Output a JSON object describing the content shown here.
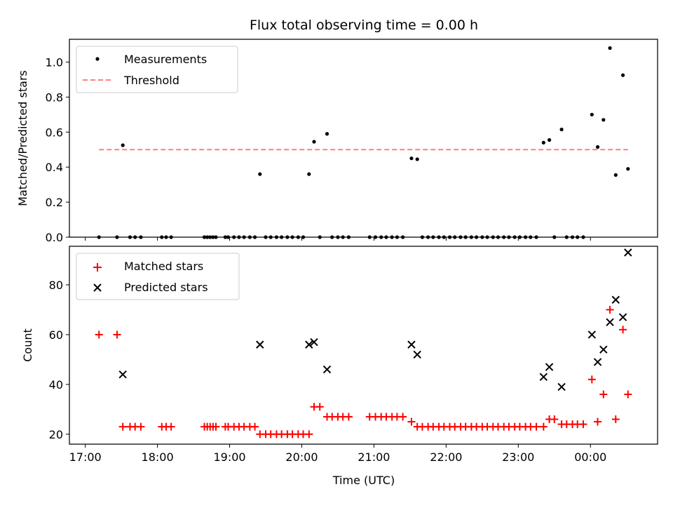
{
  "figure": {
    "title": "Flux total observing time = 0.00 h",
    "xlabel": "Time (UTC)",
    "x_tick_labels": [
      "17:00",
      "18:00",
      "19:00",
      "20:00",
      "21:00",
      "22:00",
      "23:00",
      "00:00"
    ]
  },
  "chart_data": [
    {
      "type": "scatter",
      "panel": "top",
      "xlabel": "",
      "ylabel": "Matched/Predicted stars",
      "x_unit": "hours after 17:00 UTC",
      "xlim": [
        -0.22,
        7.93
      ],
      "ylim": [
        0.0,
        1.13
      ],
      "y_ticks": [
        0.0,
        0.2,
        0.4,
        0.6,
        0.8,
        1.0
      ],
      "y_tick_labels": [
        "0.0",
        "0.2",
        "0.4",
        "0.6",
        "0.8",
        "1.0"
      ],
      "legend_position": "top-left",
      "colors": {
        "measurements": "#000000",
        "threshold": "#ff7f7f"
      },
      "series": [
        {
          "name": "Measurements",
          "marker": "dot",
          "points": [
            [
              0.19,
              0.0
            ],
            [
              0.44,
              0.0
            ],
            [
              0.52,
              0.525
            ],
            [
              0.62,
              0.0
            ],
            [
              0.69,
              0.0
            ],
            [
              0.77,
              0.0
            ],
            [
              1.06,
              0.0
            ],
            [
              1.12,
              0.0
            ],
            [
              1.19,
              0.0
            ],
            [
              1.65,
              0.0
            ],
            [
              1.69,
              0.0
            ],
            [
              1.73,
              0.0
            ],
            [
              1.77,
              0.0
            ],
            [
              1.81,
              0.0
            ],
            [
              1.94,
              0.0
            ],
            [
              1.98,
              0.0
            ],
            [
              2.06,
              0.0
            ],
            [
              2.13,
              0.0
            ],
            [
              2.2,
              0.0
            ],
            [
              2.28,
              0.0
            ],
            [
              2.35,
              0.0
            ],
            [
              2.42,
              0.36
            ],
            [
              2.5,
              0.0
            ],
            [
              2.57,
              0.0
            ],
            [
              2.65,
              0.0
            ],
            [
              2.72,
              0.0
            ],
            [
              2.8,
              0.0
            ],
            [
              2.87,
              0.0
            ],
            [
              2.95,
              0.0
            ],
            [
              3.02,
              0.0
            ],
            [
              3.1,
              0.36
            ],
            [
              3.17,
              0.545
            ],
            [
              3.25,
              0.0
            ],
            [
              3.35,
              0.59
            ],
            [
              3.42,
              0.0
            ],
            [
              3.5,
              0.0
            ],
            [
              3.57,
              0.0
            ],
            [
              3.65,
              0.0
            ],
            [
              3.94,
              0.0
            ],
            [
              4.02,
              0.0
            ],
            [
              4.1,
              0.0
            ],
            [
              4.17,
              0.0
            ],
            [
              4.25,
              0.0
            ],
            [
              4.32,
              0.0
            ],
            [
              4.4,
              0.0
            ],
            [
              4.52,
              0.45
            ],
            [
              4.6,
              0.445
            ],
            [
              4.67,
              0.0
            ],
            [
              4.75,
              0.0
            ],
            [
              4.82,
              0.0
            ],
            [
              4.9,
              0.0
            ],
            [
              4.97,
              0.0
            ],
            [
              5.05,
              0.0
            ],
            [
              5.12,
              0.0
            ],
            [
              5.2,
              0.0
            ],
            [
              5.27,
              0.0
            ],
            [
              5.35,
              0.0
            ],
            [
              5.42,
              0.0
            ],
            [
              5.5,
              0.0
            ],
            [
              5.57,
              0.0
            ],
            [
              5.65,
              0.0
            ],
            [
              5.72,
              0.0
            ],
            [
              5.8,
              0.0
            ],
            [
              5.87,
              0.0
            ],
            [
              5.95,
              0.0
            ],
            [
              6.02,
              0.0
            ],
            [
              6.1,
              0.0
            ],
            [
              6.17,
              0.0
            ],
            [
              6.25,
              0.0
            ],
            [
              6.35,
              0.54
            ],
            [
              6.43,
              0.555
            ],
            [
              6.5,
              0.0
            ],
            [
              6.6,
              0.615
            ],
            [
              6.67,
              0.0
            ],
            [
              6.75,
              0.0
            ],
            [
              6.82,
              0.0
            ],
            [
              6.9,
              0.0
            ],
            [
              7.02,
              0.7
            ],
            [
              7.1,
              0.515
            ],
            [
              7.18,
              0.67
            ],
            [
              7.27,
              1.08
            ],
            [
              7.35,
              0.355
            ],
            [
              7.45,
              0.925
            ],
            [
              7.52,
              0.39
            ]
          ]
        },
        {
          "name": "Threshold",
          "marker": "dashed-line",
          "points": [
            [
              0.19,
              0.5
            ],
            [
              7.52,
              0.5
            ]
          ]
        }
      ]
    },
    {
      "type": "scatter",
      "panel": "bottom",
      "xlabel": "Time (UTC)",
      "ylabel": "Count",
      "x_unit": "hours after 17:00 UTC",
      "xlim": [
        -0.22,
        7.93
      ],
      "ylim": [
        16,
        95.5
      ],
      "y_ticks": [
        20,
        40,
        60,
        80
      ],
      "y_tick_labels": [
        "20",
        "40",
        "60",
        "80"
      ],
      "legend_position": "top-left",
      "colors": {
        "matched": "#ff0000",
        "predicted": "#000000"
      },
      "series": [
        {
          "name": "Matched stars",
          "marker": "plus",
          "points": [
            [
              0.19,
              60
            ],
            [
              0.44,
              60
            ],
            [
              0.52,
              23
            ],
            [
              0.62,
              23
            ],
            [
              0.69,
              23
            ],
            [
              0.77,
              23
            ],
            [
              1.06,
              23
            ],
            [
              1.12,
              23
            ],
            [
              1.19,
              23
            ],
            [
              1.65,
              23
            ],
            [
              1.69,
              23
            ],
            [
              1.73,
              23
            ],
            [
              1.77,
              23
            ],
            [
              1.81,
              23
            ],
            [
              1.94,
              23
            ],
            [
              1.98,
              23
            ],
            [
              2.06,
              23
            ],
            [
              2.13,
              23
            ],
            [
              2.2,
              23
            ],
            [
              2.28,
              23
            ],
            [
              2.35,
              23
            ],
            [
              2.42,
              20
            ],
            [
              2.5,
              20
            ],
            [
              2.57,
              20
            ],
            [
              2.65,
              20
            ],
            [
              2.72,
              20
            ],
            [
              2.8,
              20
            ],
            [
              2.87,
              20
            ],
            [
              2.95,
              20
            ],
            [
              3.02,
              20
            ],
            [
              3.1,
              20
            ],
            [
              3.17,
              31
            ],
            [
              3.25,
              31
            ],
            [
              3.35,
              27
            ],
            [
              3.42,
              27
            ],
            [
              3.5,
              27
            ],
            [
              3.57,
              27
            ],
            [
              3.65,
              27
            ],
            [
              3.94,
              27
            ],
            [
              4.02,
              27
            ],
            [
              4.1,
              27
            ],
            [
              4.17,
              27
            ],
            [
              4.25,
              27
            ],
            [
              4.32,
              27
            ],
            [
              4.4,
              27
            ],
            [
              4.52,
              25
            ],
            [
              4.6,
              23
            ],
            [
              4.67,
              23
            ],
            [
              4.75,
              23
            ],
            [
              4.82,
              23
            ],
            [
              4.9,
              23
            ],
            [
              4.97,
              23
            ],
            [
              5.05,
              23
            ],
            [
              5.12,
              23
            ],
            [
              5.2,
              23
            ],
            [
              5.27,
              23
            ],
            [
              5.35,
              23
            ],
            [
              5.42,
              23
            ],
            [
              5.5,
              23
            ],
            [
              5.57,
              23
            ],
            [
              5.65,
              23
            ],
            [
              5.72,
              23
            ],
            [
              5.8,
              23
            ],
            [
              5.87,
              23
            ],
            [
              5.95,
              23
            ],
            [
              6.02,
              23
            ],
            [
              6.1,
              23
            ],
            [
              6.17,
              23
            ],
            [
              6.25,
              23
            ],
            [
              6.35,
              23
            ],
            [
              6.43,
              26
            ],
            [
              6.5,
              26
            ],
            [
              6.6,
              24
            ],
            [
              6.67,
              24
            ],
            [
              6.75,
              24
            ],
            [
              6.82,
              24
            ],
            [
              6.9,
              24
            ],
            [
              7.02,
              42
            ],
            [
              7.1,
              25
            ],
            [
              7.18,
              36
            ],
            [
              7.27,
              70
            ],
            [
              7.35,
              26
            ],
            [
              7.45,
              62
            ],
            [
              7.52,
              36
            ]
          ]
        },
        {
          "name": "Predicted stars",
          "marker": "x",
          "points": [
            [
              0.52,
              44
            ],
            [
              2.42,
              56
            ],
            [
              3.1,
              56
            ],
            [
              3.17,
              57
            ],
            [
              3.35,
              46
            ],
            [
              4.52,
              56
            ],
            [
              4.6,
              52
            ],
            [
              6.35,
              43
            ],
            [
              6.43,
              47
            ],
            [
              6.6,
              39
            ],
            [
              7.02,
              60
            ],
            [
              7.1,
              49
            ],
            [
              7.18,
              54
            ],
            [
              7.27,
              65
            ],
            [
              7.35,
              74
            ],
            [
              7.45,
              67
            ],
            [
              7.52,
              93
            ]
          ]
        }
      ]
    }
  ]
}
